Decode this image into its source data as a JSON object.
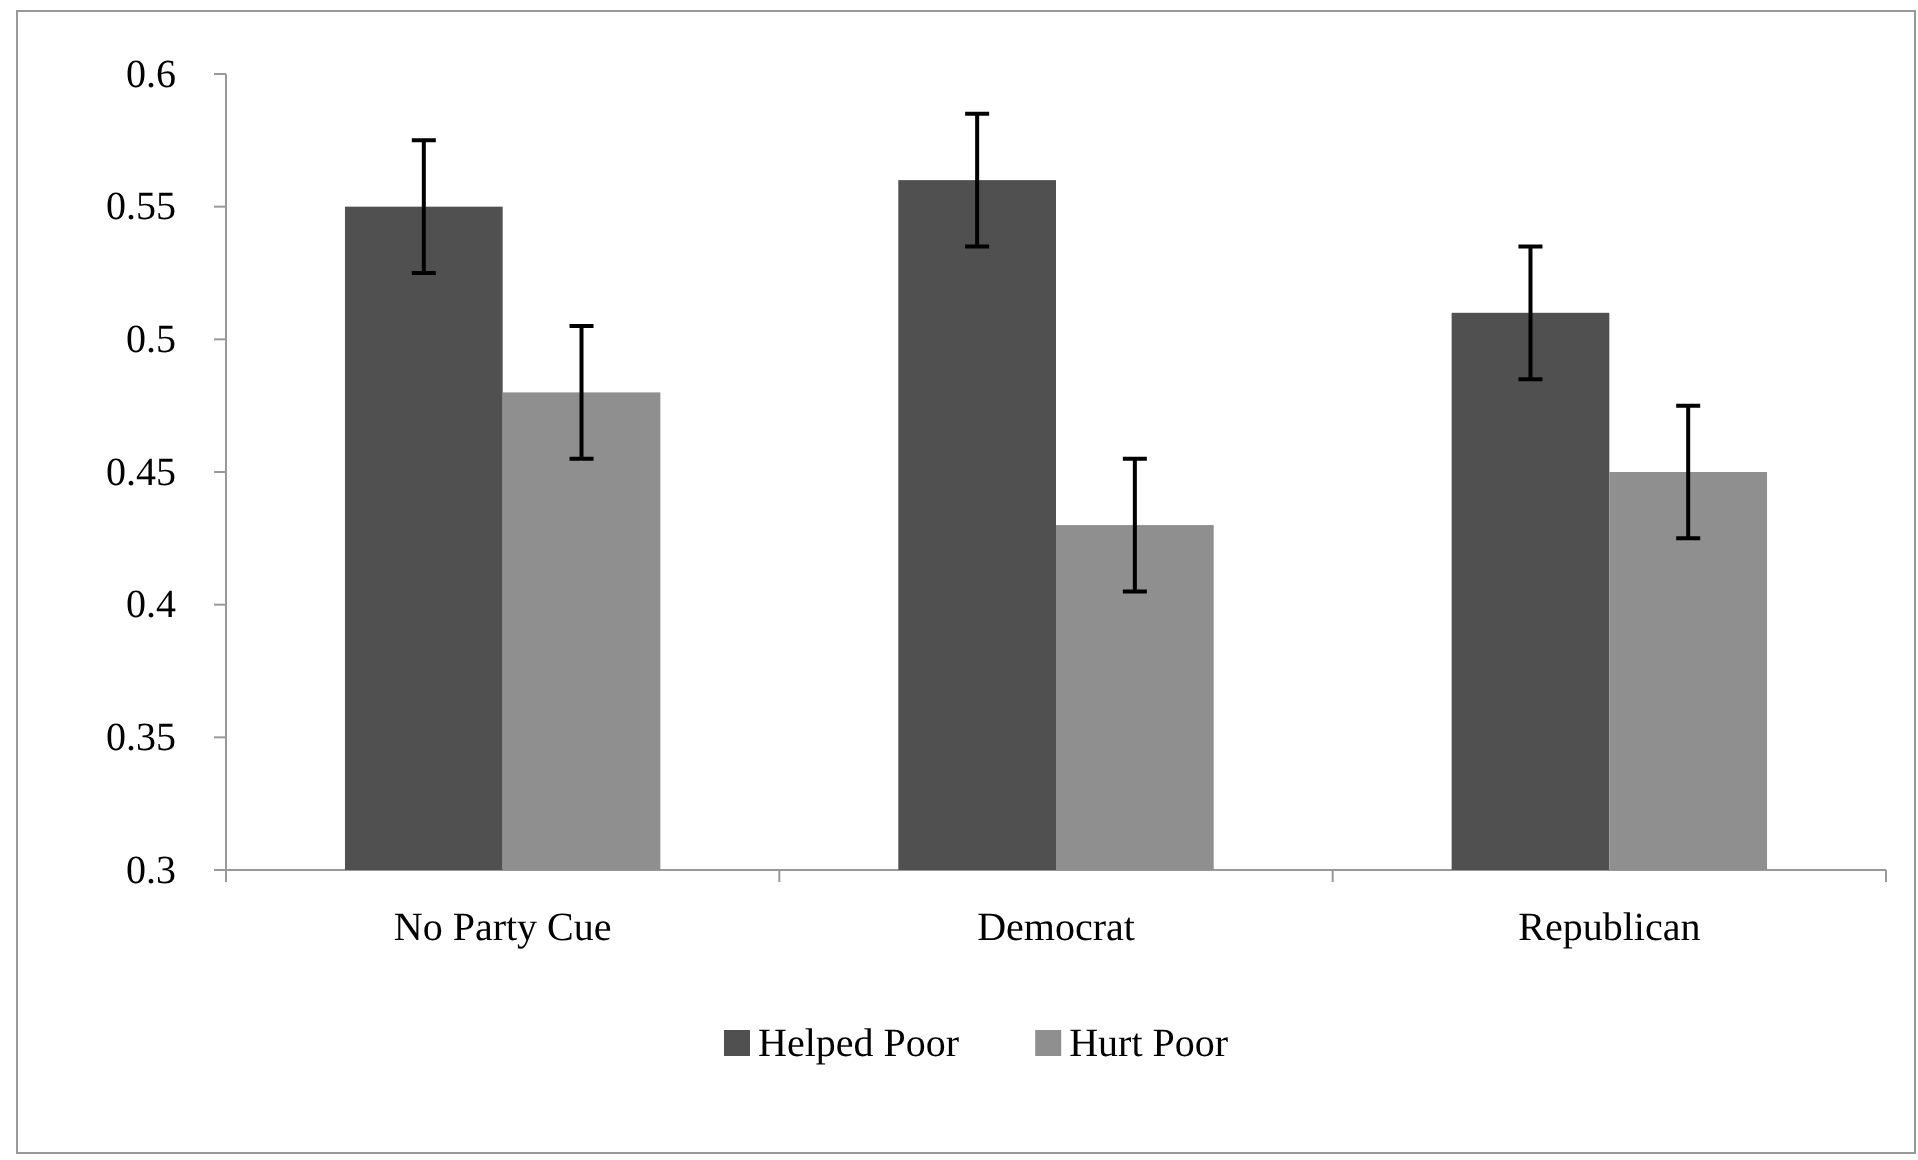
{
  "chart_data": {
    "type": "bar",
    "categories": [
      "No Party Cue",
      "Democrat",
      "Republican"
    ],
    "series": [
      {
        "name": "Helped Poor",
        "color": "#505050",
        "values": [
          0.55,
          0.56,
          0.51
        ],
        "errors": [
          0.025,
          0.025,
          0.025
        ]
      },
      {
        "name": "Hurt Poor",
        "color": "#8f8f8f",
        "values": [
          0.48,
          0.43,
          0.45
        ],
        "errors": [
          0.025,
          0.025,
          0.025
        ]
      }
    ],
    "ylim": [
      0.3,
      0.6
    ],
    "yticks": [
      0.3,
      0.35,
      0.4,
      0.45,
      0.5,
      0.55,
      0.6
    ],
    "grid": false,
    "legend": "bottom"
  }
}
